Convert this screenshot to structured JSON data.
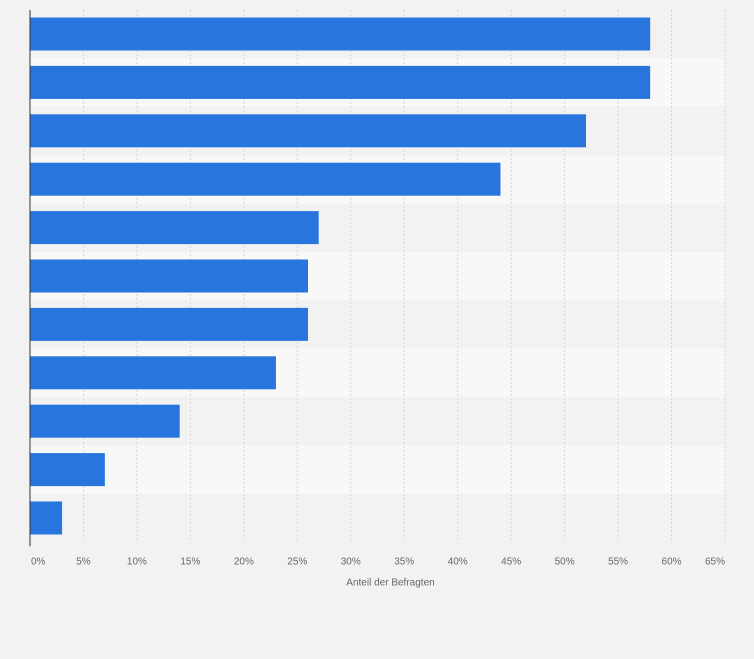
{
  "chart_data": {
    "type": "bar",
    "orientation": "horizontal",
    "categories": [
      "",
      "",
      "",
      "",
      "",
      "",
      "",
      "",
      "",
      "",
      ""
    ],
    "values": [
      58,
      58,
      52,
      44,
      27,
      26,
      26,
      23,
      14,
      7,
      3
    ],
    "title": "",
    "xlabel": "Anteil der Befragten",
    "ylabel": "",
    "xlim": [
      0,
      65
    ],
    "x_ticks": [
      "0%",
      "5%",
      "10%",
      "15%",
      "20%",
      "25%",
      "30%",
      "35%",
      "40%",
      "45%",
      "50%",
      "55%",
      "60%",
      "65%"
    ],
    "grid": true,
    "legend": "none",
    "bar_color": "#2876dd"
  }
}
